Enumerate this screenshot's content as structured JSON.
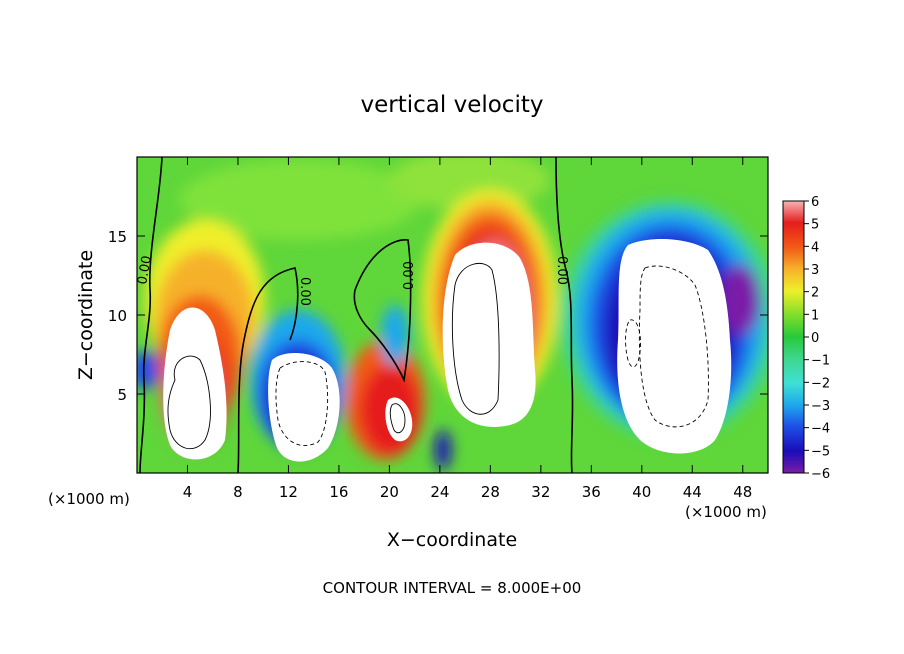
{
  "chart_data": {
    "type": "heatmap",
    "title": "vertical velocity",
    "xlabel": "X−coordinate",
    "ylabel": "Z−coordinate",
    "x_unit_left": "(×1000 m)",
    "x_unit_right": "(×1000 m)",
    "xlim": [
      0,
      50
    ],
    "ylim": [
      0,
      20
    ],
    "x_ticks": [
      4,
      8,
      12,
      16,
      20,
      24,
      28,
      32,
      36,
      40,
      44,
      48
    ],
    "y_ticks": [
      5,
      10,
      15
    ],
    "footer": "CONTOUR INTERVAL = 8.000E+00",
    "colorbar": {
      "ticks": [
        "6",
        "5",
        "4",
        "3",
        "2",
        "1",
        "0",
        "−1",
        "−2",
        "−3",
        "−4",
        "−5",
        "−6"
      ],
      "range": [
        -6,
        6
      ],
      "colors_low_to_high": [
        "#7a1ca8",
        "#1a0cb8",
        "#1f4ee6",
        "#1ea8ec",
        "#3ee0d6",
        "#3ed68f",
        "#27c93b",
        "#7fdd2a",
        "#f0ef2a",
        "#f6b12a",
        "#f25a16",
        "#e61d1d",
        "#f07b7b",
        "#f6b3b3"
      ]
    },
    "contour_labels": [
      "0.00",
      "0.00",
      "0.00",
      "0.00"
    ],
    "features": [
      {
        "kind": "updraft",
        "x": 5,
        "z": 5.5,
        "peak": 8
      },
      {
        "kind": "downdraft",
        "x": 13,
        "z": 5,
        "peak": -8
      },
      {
        "kind": "updraft",
        "x": 20.5,
        "z": 4,
        "peak": 8
      },
      {
        "kind": "updraft",
        "x": 27.5,
        "z": 10,
        "peak": 8
      },
      {
        "kind": "downdraft",
        "x": 43,
        "z": 9,
        "peak": -8
      }
    ]
  }
}
